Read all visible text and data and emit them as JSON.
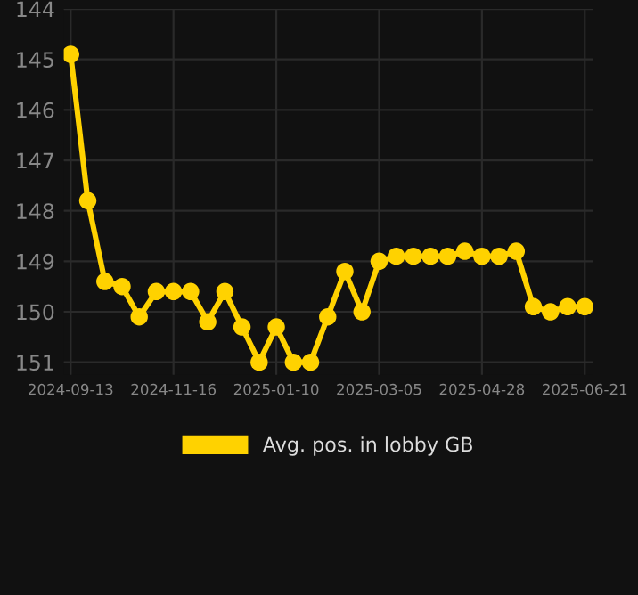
{
  "chart_data": {
    "type": "line",
    "categories": [
      "2024-09-13",
      null,
      null,
      null,
      null,
      null,
      "2024-11-16",
      null,
      null,
      null,
      null,
      null,
      "2025-01-10",
      null,
      null,
      null,
      null,
      null,
      "2025-03-05",
      null,
      null,
      null,
      null,
      null,
      "2025-04-28",
      null,
      null,
      null,
      null,
      null,
      "2025-06-21"
    ],
    "series": [
      {
        "name": "Avg. pos. in lobby GB",
        "color": "#ffd200",
        "values": [
          144.9,
          147.8,
          149.4,
          149.5,
          150.1,
          149.6,
          149.6,
          149.6,
          150.2,
          149.6,
          150.3,
          151.0,
          150.3,
          151.0,
          151.0,
          150.1,
          149.2,
          150.0,
          149.0,
          148.9,
          148.9,
          148.9,
          148.9,
          148.8,
          148.9,
          148.9,
          148.8,
          149.9,
          150.0,
          149.9,
          149.9
        ]
      }
    ],
    "ylim": [
      151.25,
      144
    ],
    "yticks": [
      144,
      145,
      146,
      147,
      148,
      149,
      150,
      151
    ],
    "grid": true,
    "legend": "bottom",
    "marker": "circle",
    "line_style": "solid"
  }
}
